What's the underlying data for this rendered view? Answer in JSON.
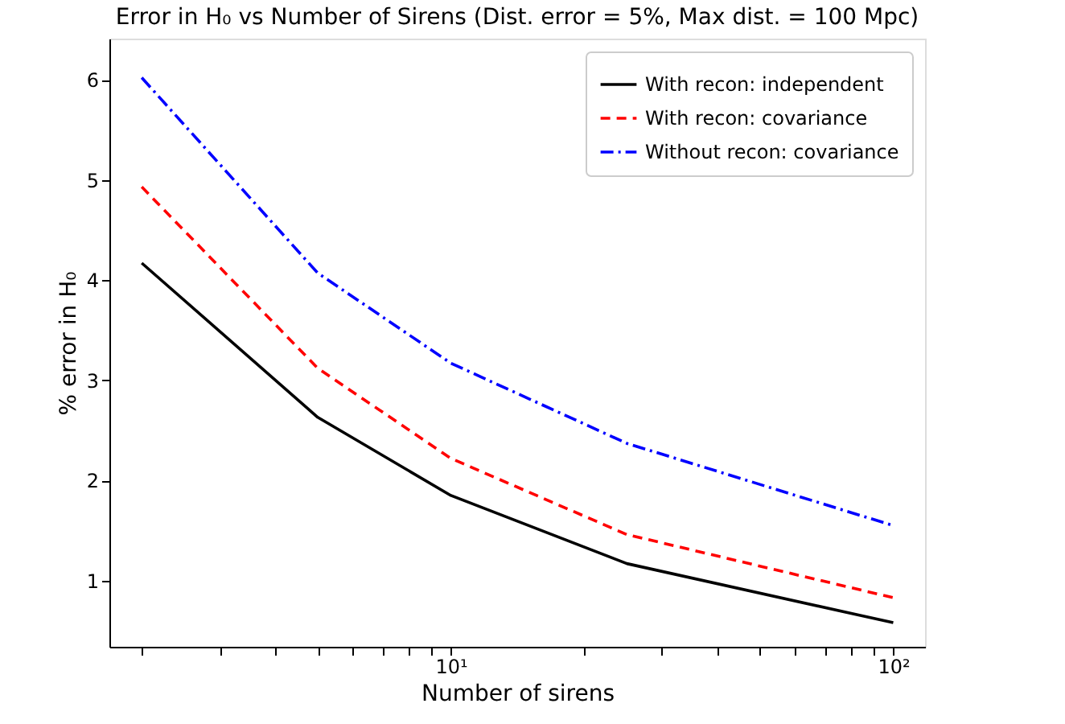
{
  "chart_data": {
    "type": "line",
    "title": "Error in H₀ vs Number of Sirens (Dist. error = 5%, Max dist. = 100 Mpc)",
    "xlabel": "Number of sirens",
    "ylabel": "% error in H₀",
    "x": [
      2,
      5,
      10,
      25,
      100
    ],
    "series": [
      {
        "name": "With recon: independent",
        "color": "#000000",
        "line_style": "solid",
        "values": [
          4.17,
          2.63,
          1.85,
          1.17,
          0.58
        ]
      },
      {
        "name": "With recon: covariance",
        "color": "#ff0000",
        "line_style": "dashed",
        "values": [
          4.93,
          3.12,
          2.22,
          1.46,
          0.83
        ]
      },
      {
        "name": "Without recon: covariance",
        "color": "#0000ff",
        "line_style": "dashdot",
        "values": [
          6.02,
          4.07,
          3.17,
          2.37,
          1.55
        ]
      }
    ],
    "log": "x",
    "xlim": [
      1.69,
      118
    ],
    "ylim": [
      0.34,
      6.41
    ],
    "xticks": [
      {
        "value": 2,
        "label": null
      },
      {
        "value": 3,
        "label": null
      },
      {
        "value": 4,
        "label": null
      },
      {
        "value": 5,
        "label": null
      },
      {
        "value": 6,
        "label": null
      },
      {
        "value": 7,
        "label": null
      },
      {
        "value": 8,
        "label": null
      },
      {
        "value": 9,
        "label": null
      },
      {
        "value": 10,
        "label": "10¹"
      },
      {
        "value": 20,
        "label": null
      },
      {
        "value": 30,
        "label": null
      },
      {
        "value": 40,
        "label": null
      },
      {
        "value": 50,
        "label": null
      },
      {
        "value": 60,
        "label": null
      },
      {
        "value": 70,
        "label": null
      },
      {
        "value": 80,
        "label": null
      },
      {
        "value": 90,
        "label": null
      },
      {
        "value": 100,
        "label": "10²"
      }
    ],
    "yticks": [
      1,
      2,
      3,
      4,
      5,
      6
    ],
    "grid": false,
    "legend": "top right",
    "marker": "none"
  }
}
